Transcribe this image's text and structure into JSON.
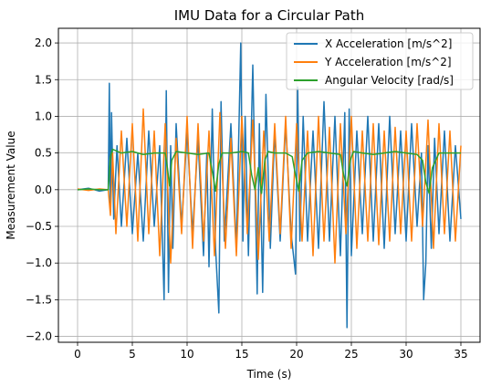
{
  "chart_data": {
    "type": "line",
    "title": "IMU Data for a Circular Path",
    "xlabel": "Time (s)",
    "ylabel": "Measurement Value",
    "xlim": [
      -1.75,
      36.75
    ],
    "ylim": [
      -2.08,
      2.2
    ],
    "xticks": [
      0,
      5,
      10,
      15,
      20,
      25,
      30,
      35
    ],
    "xtick_labels": [
      "0",
      "5",
      "10",
      "15",
      "20",
      "25",
      "30",
      "35"
    ],
    "yticks": [
      -2.0,
      -1.5,
      -1.0,
      -0.5,
      0.0,
      0.5,
      1.0,
      1.5,
      2.0
    ],
    "ytick_labels": [
      "−2.0",
      "−1.5",
      "−1.0",
      "−0.5",
      "0.0",
      "0.5",
      "1.0",
      "1.5",
      "2.0"
    ],
    "grid": true,
    "legend_position": "top-right",
    "series": [
      {
        "name": "X Acceleration [m/s^2]",
        "color": "#1f77b4",
        "x": [
          0,
          1.0,
          2.0,
          2.8,
          2.9,
          3.0,
          3.1,
          3.3,
          3.6,
          4.0,
          4.5,
          5.0,
          5.5,
          6.0,
          6.5,
          7.0,
          7.5,
          7.9,
          8.1,
          8.3,
          8.5,
          8.7,
          9.0,
          9.5,
          10.0,
          10.5,
          11.0,
          11.5,
          11.8,
          12.0,
          12.3,
          12.6,
          12.9,
          13.1,
          13.4,
          14.0,
          14.5,
          14.9,
          15.1,
          15.3,
          15.6,
          16.0,
          16.4,
          16.6,
          16.9,
          17.2,
          17.6,
          18.0,
          18.5,
          19.0,
          19.5,
          19.9,
          20.1,
          20.3,
          20.6,
          21.0,
          21.5,
          22.0,
          22.5,
          23.0,
          23.5,
          24.0,
          24.4,
          24.6,
          24.8,
          25.0,
          25.5,
          26.0,
          26.5,
          27.0,
          27.5,
          28.0,
          28.5,
          29.0,
          29.5,
          30.0,
          30.5,
          31.0,
          31.4,
          31.6,
          31.8,
          32.0,
          32.3,
          32.6,
          33.0,
          33.5,
          34.0,
          34.5,
          35.0
        ],
        "y": [
          0.0,
          0.02,
          -0.02,
          0.0,
          1.45,
          -0.3,
          1.05,
          -0.4,
          0.6,
          -0.5,
          0.7,
          -0.6,
          0.5,
          -0.7,
          0.8,
          -0.5,
          0.6,
          -1.5,
          1.35,
          -1.4,
          0.6,
          -0.8,
          0.9,
          -0.5,
          0.8,
          -0.6,
          0.7,
          -0.9,
          0.5,
          -1.05,
          1.1,
          -0.8,
          -1.68,
          1.2,
          -0.7,
          0.9,
          -0.8,
          2.0,
          -0.7,
          1.0,
          -0.9,
          1.7,
          -1.42,
          0.9,
          -1.4,
          1.3,
          -0.8,
          0.8,
          -0.7,
          0.9,
          -0.6,
          -1.15,
          1.4,
          -0.7,
          1.0,
          -0.7,
          0.8,
          -0.8,
          1.2,
          -0.7,
          1.0,
          -0.9,
          1.05,
          -1.88,
          1.1,
          -0.9,
          0.8,
          -0.6,
          1.0,
          -0.7,
          0.9,
          -0.8,
          1.0,
          -0.6,
          0.8,
          -0.7,
          0.9,
          -0.5,
          0.5,
          -1.5,
          -1.0,
          0.6,
          -0.8,
          0.7,
          -0.6,
          0.8,
          -0.7,
          0.6,
          -0.4
        ]
      },
      {
        "name": "Y Acceleration [m/s^2]",
        "color": "#ff7f0e",
        "x": [
          0,
          1.0,
          2.0,
          2.8,
          3.0,
          3.2,
          3.5,
          4.0,
          4.5,
          5.0,
          5.5,
          6.0,
          6.5,
          7.0,
          7.5,
          8.0,
          8.5,
          9.0,
          9.5,
          10.0,
          10.5,
          11.0,
          11.5,
          12.0,
          12.5,
          13.0,
          13.5,
          14.0,
          14.5,
          15.0,
          15.5,
          16.0,
          16.5,
          17.0,
          17.5,
          18.0,
          18.5,
          19.0,
          19.5,
          20.0,
          20.5,
          21.0,
          21.5,
          22.0,
          22.5,
          23.0,
          23.5,
          24.0,
          24.5,
          25.0,
          25.5,
          26.0,
          26.5,
          27.0,
          27.5,
          28.0,
          28.5,
          29.0,
          29.5,
          30.0,
          30.5,
          31.0,
          31.5,
          32.0,
          32.5,
          33.0,
          33.5,
          34.0,
          34.5,
          35.0
        ],
        "y": [
          0.01,
          -0.01,
          0.01,
          0.0,
          -0.35,
          0.5,
          -0.6,
          0.8,
          -0.5,
          0.9,
          -0.7,
          1.1,
          -0.6,
          0.8,
          -0.9,
          0.9,
          -1.0,
          0.7,
          -0.6,
          1.0,
          -0.8,
          0.9,
          -0.7,
          0.8,
          -0.9,
          1.05,
          -0.8,
          0.7,
          -0.9,
          1.0,
          -0.6,
          0.95,
          -0.95,
          0.8,
          -0.7,
          0.9,
          -0.6,
          1.0,
          -0.8,
          0.9,
          -0.7,
          0.8,
          -0.9,
          1.0,
          -0.7,
          0.85,
          -1.0,
          0.9,
          -0.6,
          1.0,
          -0.8,
          0.8,
          -0.7,
          0.9,
          -0.75,
          0.8,
          -0.7,
          0.85,
          -0.6,
          0.8,
          -0.7,
          0.9,
          -0.5,
          0.95,
          -0.8,
          0.9,
          -0.6,
          0.8,
          -0.7,
          0.6
        ]
      },
      {
        "name": "Angular Velocity [rad/s]",
        "color": "#2ca02c",
        "x": [
          0,
          1.0,
          2.0,
          2.8,
          3.0,
          3.2,
          4.0,
          5.0,
          6.0,
          7.0,
          8.0,
          8.2,
          8.4,
          8.6,
          9.0,
          10.0,
          11.0,
          12.0,
          12.3,
          12.6,
          12.9,
          13.2,
          14.0,
          15.0,
          15.6,
          15.9,
          16.2,
          16.5,
          16.8,
          17.1,
          17.4,
          18.0,
          19.0,
          19.6,
          19.9,
          20.2,
          20.5,
          21.0,
          22.0,
          23.0,
          24.0,
          24.3,
          24.6,
          24.9,
          25.2,
          26.0,
          27.0,
          28.0,
          29.0,
          30.0,
          31.0,
          31.5,
          31.8,
          32.1,
          32.4,
          33.0,
          34.0,
          35.0
        ],
        "y": [
          0.0,
          0.01,
          0.0,
          0.0,
          0.45,
          0.55,
          0.5,
          0.52,
          0.48,
          0.5,
          0.5,
          0.3,
          0.05,
          0.4,
          0.52,
          0.5,
          0.48,
          0.5,
          0.25,
          -0.02,
          0.35,
          0.5,
          0.5,
          0.52,
          0.5,
          0.2,
          0.0,
          0.3,
          -0.05,
          0.4,
          0.52,
          0.5,
          0.5,
          0.45,
          0.2,
          -0.02,
          0.4,
          0.5,
          0.52,
          0.5,
          0.48,
          0.2,
          0.05,
          0.4,
          0.52,
          0.5,
          0.48,
          0.5,
          0.52,
          0.5,
          0.48,
          0.4,
          0.1,
          -0.05,
          0.3,
          0.5,
          0.5,
          0.5
        ]
      }
    ]
  }
}
